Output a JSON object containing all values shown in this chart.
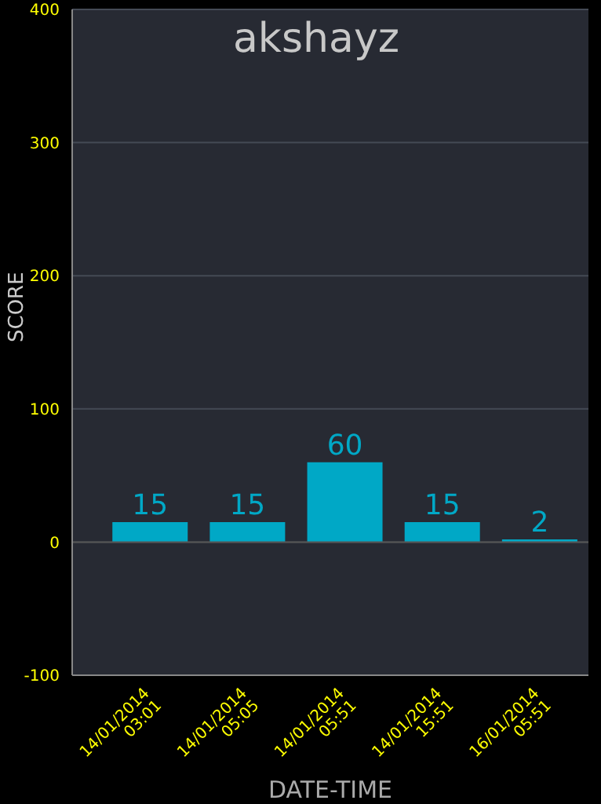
{
  "chart_data": {
    "type": "bar",
    "title": "akshayz",
    "xlabel": "DATE-TIME",
    "ylabel": "SCORE",
    "categories": [
      "14/01/2014 03:01",
      "14/01/2014 05:05",
      "14/01/2014 05:51",
      "14/01/2014 15:51",
      "16/01/2014 05:51"
    ],
    "values": [
      15,
      15,
      60,
      15,
      2
    ],
    "color": "#00a8c6",
    "ylim": [
      -100,
      400
    ],
    "yticks": [
      -100,
      0,
      100,
      200,
      300,
      400
    ],
    "grid": "y",
    "data_labels": true
  }
}
